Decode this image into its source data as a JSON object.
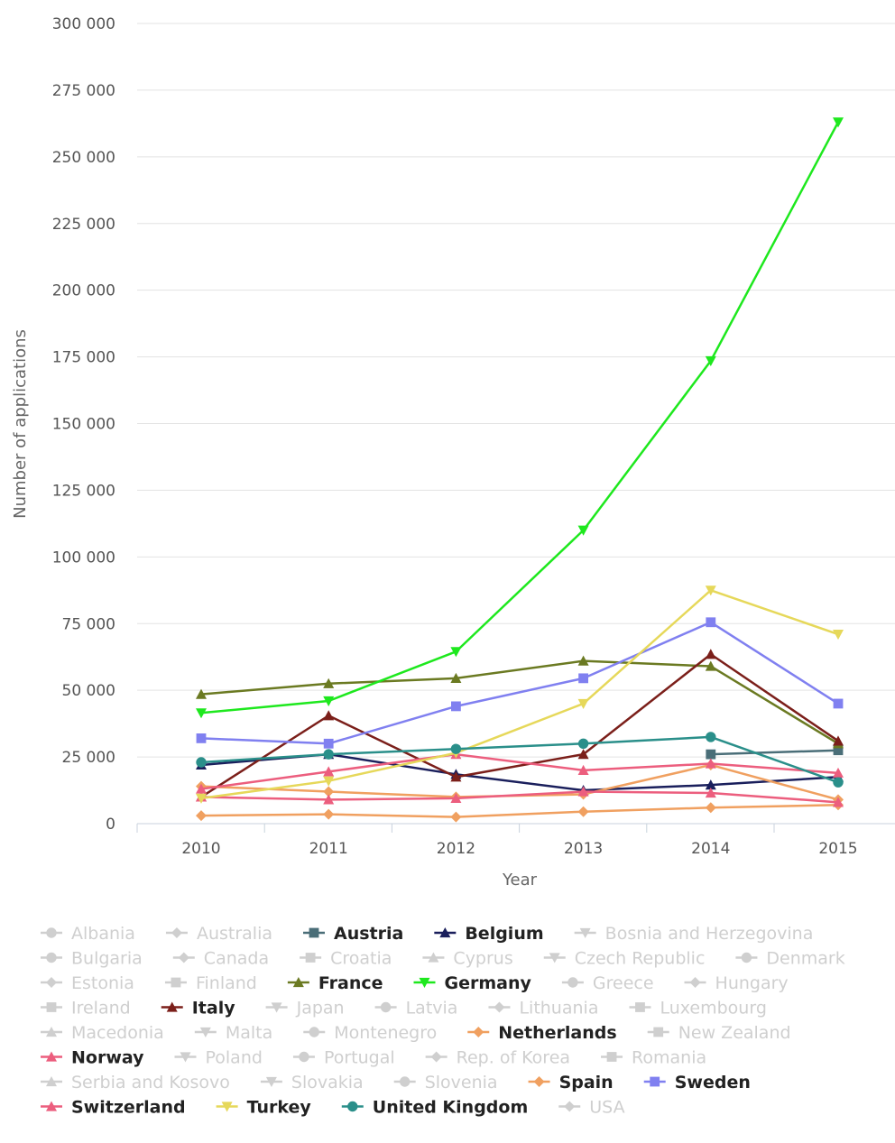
{
  "chart_data": {
    "type": "line",
    "xlabel": "Year",
    "ylabel": "Number of applications",
    "ylim": [
      0,
      300000
    ],
    "yticks": [
      "0",
      "25 000",
      "50 000",
      "75 000",
      "100 000",
      "125 000",
      "150 000",
      "175 000",
      "200 000",
      "225 000",
      "250 000",
      "275 000",
      "300 000"
    ],
    "categories": [
      "2010",
      "2011",
      "2012",
      "2013",
      "2014",
      "2015"
    ],
    "grid": true,
    "legend_position": "bottom",
    "series": [
      {
        "name": "Austria",
        "color": "#4a6e78",
        "marker": "square",
        "values": [
          null,
          null,
          null,
          null,
          26000,
          27500
        ]
      },
      {
        "name": "Belgium",
        "color": "#1a1f5c",
        "marker": "triangle",
        "values": [
          22000,
          26000,
          18500,
          12500,
          14500,
          17500
        ]
      },
      {
        "name": "France",
        "color": "#6b7a22",
        "marker": "triangle",
        "values": [
          48500,
          52500,
          54500,
          61000,
          59000,
          30000
        ]
      },
      {
        "name": "Germany",
        "color": "#1ee81e",
        "marker": "triangle-down",
        "values": [
          41500,
          46000,
          64500,
          110000,
          173500,
          263000
        ]
      },
      {
        "name": "Italy",
        "color": "#7b1f1a",
        "marker": "triangle",
        "values": [
          10000,
          40500,
          17500,
          26000,
          63500,
          31000
        ]
      },
      {
        "name": "Netherlands",
        "color": "#f0a060",
        "marker": "diamond",
        "values": [
          14000,
          12000,
          10000,
          11000,
          22000,
          9000
        ]
      },
      {
        "name": "Norway",
        "color": "#ec5e7e",
        "marker": "triangle",
        "values": [
          13000,
          19500,
          26000,
          20000,
          22500,
          19000
        ]
      },
      {
        "name": "Spain",
        "color": "#f0a060",
        "marker": "diamond",
        "values": [
          3000,
          3500,
          2500,
          4500,
          6000,
          7000
        ]
      },
      {
        "name": "Sweden",
        "color": "#8080f0",
        "marker": "square",
        "values": [
          32000,
          30000,
          44000,
          54500,
          75500,
          45000
        ]
      },
      {
        "name": "Switzerland",
        "color": "#ec5e7e",
        "marker": "triangle",
        "values": [
          10000,
          9000,
          9500,
          12000,
          11500,
          8000
        ]
      },
      {
        "name": "Turkey",
        "color": "#e6d85a",
        "marker": "triangle-down",
        "values": [
          9500,
          16000,
          26500,
          45000,
          87500,
          71000
        ]
      },
      {
        "name": "United Kingdom",
        "color": "#2a8f8a",
        "marker": "circle",
        "values": [
          23000,
          26000,
          28000,
          30000,
          32500,
          15500
        ]
      }
    ],
    "legend": [
      {
        "name": "Albania",
        "active": false,
        "marker": "circle",
        "color": "#cfcfcf"
      },
      {
        "name": "Australia",
        "active": false,
        "marker": "diamond",
        "color": "#cfcfcf"
      },
      {
        "name": "Austria",
        "active": true,
        "marker": "square",
        "color": "#4a6e78"
      },
      {
        "name": "Belgium",
        "active": true,
        "marker": "triangle",
        "color": "#1a1f5c"
      },
      {
        "name": "Bosnia and Herzegovina",
        "active": false,
        "marker": "triangle-down",
        "color": "#cfcfcf"
      },
      {
        "name": "Bulgaria",
        "active": false,
        "marker": "circle",
        "color": "#cfcfcf"
      },
      {
        "name": "Canada",
        "active": false,
        "marker": "diamond",
        "color": "#cfcfcf"
      },
      {
        "name": "Croatia",
        "active": false,
        "marker": "square",
        "color": "#cfcfcf"
      },
      {
        "name": "Cyprus",
        "active": false,
        "marker": "triangle",
        "color": "#cfcfcf"
      },
      {
        "name": "Czech Republic",
        "active": false,
        "marker": "triangle-down",
        "color": "#cfcfcf"
      },
      {
        "name": "Denmark",
        "active": false,
        "marker": "circle",
        "color": "#cfcfcf"
      },
      {
        "name": "Estonia",
        "active": false,
        "marker": "diamond",
        "color": "#cfcfcf"
      },
      {
        "name": "Finland",
        "active": false,
        "marker": "square",
        "color": "#cfcfcf"
      },
      {
        "name": "France",
        "active": true,
        "marker": "triangle",
        "color": "#6b7a22"
      },
      {
        "name": "Germany",
        "active": true,
        "marker": "triangle-down",
        "color": "#1ee81e"
      },
      {
        "name": "Greece",
        "active": false,
        "marker": "circle",
        "color": "#cfcfcf"
      },
      {
        "name": "Hungary",
        "active": false,
        "marker": "diamond",
        "color": "#cfcfcf"
      },
      {
        "name": "Ireland",
        "active": false,
        "marker": "square",
        "color": "#cfcfcf"
      },
      {
        "name": "Italy",
        "active": true,
        "marker": "triangle",
        "color": "#7b1f1a"
      },
      {
        "name": "Japan",
        "active": false,
        "marker": "triangle-down",
        "color": "#cfcfcf"
      },
      {
        "name": "Latvia",
        "active": false,
        "marker": "circle",
        "color": "#cfcfcf"
      },
      {
        "name": "Lithuania",
        "active": false,
        "marker": "diamond",
        "color": "#cfcfcf"
      },
      {
        "name": "Luxembourg",
        "active": false,
        "marker": "square",
        "color": "#cfcfcf"
      },
      {
        "name": "Macedonia",
        "active": false,
        "marker": "triangle",
        "color": "#cfcfcf"
      },
      {
        "name": "Malta",
        "active": false,
        "marker": "triangle-down",
        "color": "#cfcfcf"
      },
      {
        "name": "Montenegro",
        "active": false,
        "marker": "circle",
        "color": "#cfcfcf"
      },
      {
        "name": "Netherlands",
        "active": true,
        "marker": "diamond",
        "color": "#f0a060"
      },
      {
        "name": "New Zealand",
        "active": false,
        "marker": "square",
        "color": "#cfcfcf"
      },
      {
        "name": "Norway",
        "active": true,
        "marker": "triangle",
        "color": "#ec5e7e"
      },
      {
        "name": "Poland",
        "active": false,
        "marker": "triangle-down",
        "color": "#cfcfcf"
      },
      {
        "name": "Portugal",
        "active": false,
        "marker": "circle",
        "color": "#cfcfcf"
      },
      {
        "name": "Rep. of Korea",
        "active": false,
        "marker": "diamond",
        "color": "#cfcfcf"
      },
      {
        "name": "Romania",
        "active": false,
        "marker": "square",
        "color": "#cfcfcf"
      },
      {
        "name": "Serbia and Kosovo",
        "active": false,
        "marker": "triangle",
        "color": "#cfcfcf"
      },
      {
        "name": "Slovakia",
        "active": false,
        "marker": "triangle-down",
        "color": "#cfcfcf"
      },
      {
        "name": "Slovenia",
        "active": false,
        "marker": "circle",
        "color": "#cfcfcf"
      },
      {
        "name": "Spain",
        "active": true,
        "marker": "diamond",
        "color": "#f0a060"
      },
      {
        "name": "Sweden",
        "active": true,
        "marker": "square",
        "color": "#8080f0"
      },
      {
        "name": "Switzerland",
        "active": true,
        "marker": "triangle",
        "color": "#ec5e7e"
      },
      {
        "name": "Turkey",
        "active": true,
        "marker": "triangle-down",
        "color": "#e6d85a"
      },
      {
        "name": "United Kingdom",
        "active": true,
        "marker": "circle",
        "color": "#2a8f8a"
      },
      {
        "name": "USA",
        "active": false,
        "marker": "diamond",
        "color": "#cfcfcf"
      }
    ]
  }
}
